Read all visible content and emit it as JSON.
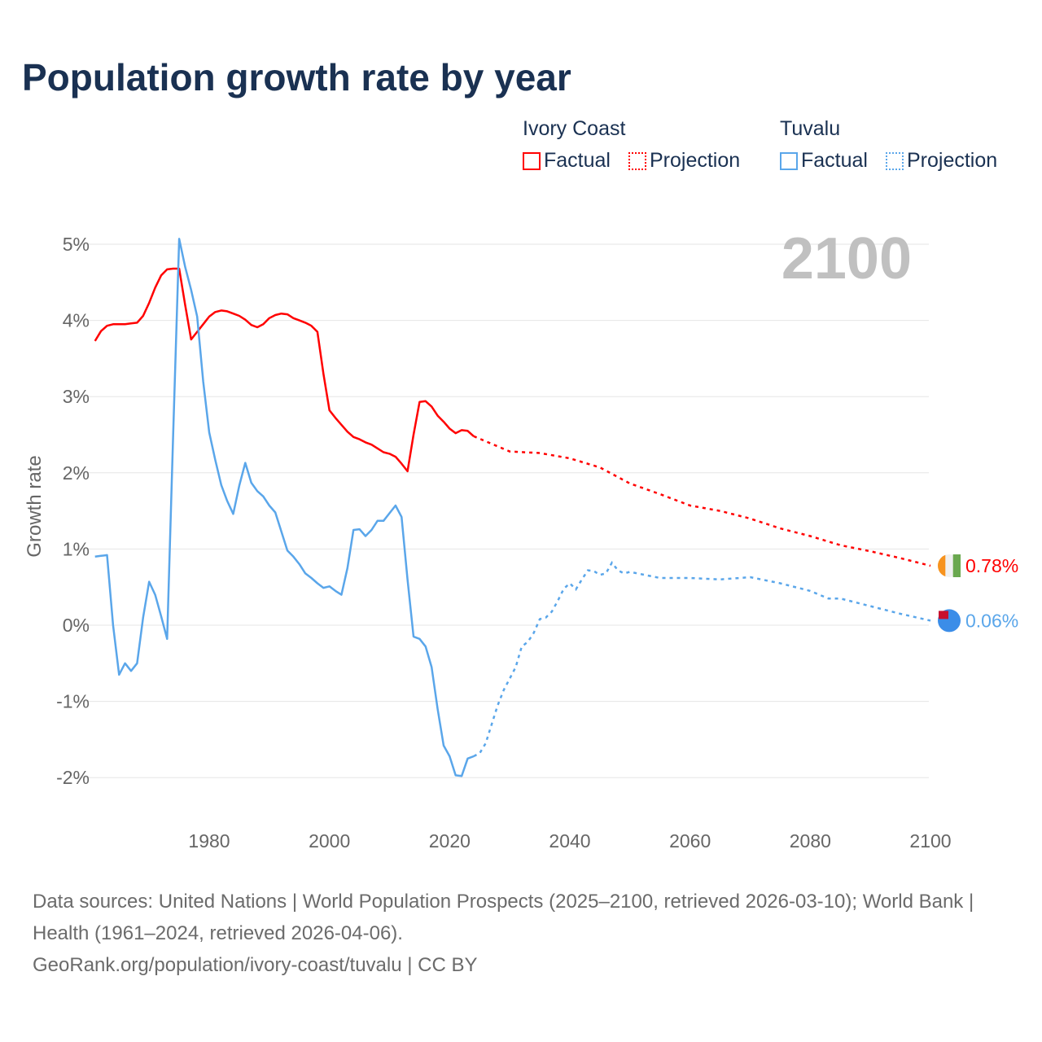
{
  "title": "Population growth rate by year",
  "legend": {
    "groups": [
      {
        "name": "Ivory Coast",
        "color": "#ff0000",
        "factual": "Factual",
        "projection": "Projection"
      },
      {
        "name": "Tuvalu",
        "color": "#5aa6ea",
        "factual": "Factual",
        "projection": "Projection"
      }
    ]
  },
  "footer": {
    "sources": "Data sources: United Nations | World Population Prospects (2025–2100, retrieved 2026-03-10); World Bank | Health (1961–2024, retrieved 2026-04-06).",
    "credit": "GeoRank.org/population/ivory-coast/tuvalu | CC BY"
  },
  "chart_data": {
    "type": "line",
    "title": "Population growth rate by year",
    "ylabel": "Growth rate",
    "xlabel": "",
    "year_label": "2100",
    "xlim": [
      1961,
      2100
    ],
    "ylim": [
      -2.4,
      5.2
    ],
    "x_ticks": [
      1980,
      2000,
      2020,
      2040,
      2060,
      2080,
      2100
    ],
    "y_ticks": [
      -2,
      -1,
      0,
      1,
      2,
      3,
      4,
      5
    ],
    "y_tick_labels": [
      "-2%",
      "-1%",
      "0%",
      "1%",
      "2%",
      "3%",
      "4%",
      "5%"
    ],
    "grid": true,
    "legend_position": "top-right",
    "series": [
      {
        "name": "Ivory Coast",
        "color": "#ff0000",
        "end_label": "0.78%",
        "factual": {
          "start": 1961,
          "values": [
            3.73,
            3.86,
            3.93,
            3.95,
            3.95,
            3.95,
            3.96,
            3.97,
            4.06,
            4.23,
            4.43,
            4.59,
            4.67,
            4.68,
            4.68,
            4.2,
            3.75,
            3.85,
            3.95,
            4.05,
            4.11,
            4.13,
            4.12,
            4.09,
            4.06,
            4.01,
            3.94,
            3.91,
            3.95,
            4.03,
            4.07,
            4.09,
            4.08,
            4.03,
            4.0,
            3.97,
            3.93,
            3.85,
            3.3,
            2.82,
            2.72,
            2.63,
            2.54,
            2.47,
            2.44,
            2.4,
            2.37,
            2.32,
            2.27,
            2.25,
            2.21,
            2.12,
            2.02,
            2.5,
            2.93,
            2.94,
            2.87,
            2.75,
            2.67,
            2.58,
            2.52,
            2.56,
            2.55,
            2.48
          ]
        },
        "projection": {
          "x": [
            2024,
            2030,
            2035,
            2040,
            2045,
            2050,
            2055,
            2060,
            2065,
            2070,
            2075,
            2080,
            2085,
            2090,
            2095,
            2100
          ],
          "values": [
            2.48,
            2.28,
            2.26,
            2.19,
            2.07,
            1.86,
            1.72,
            1.57,
            1.5,
            1.4,
            1.27,
            1.17,
            1.05,
            0.97,
            0.88,
            0.78
          ]
        }
      },
      {
        "name": "Tuvalu",
        "color": "#5aa6ea",
        "end_label": "0.06%",
        "factual": {
          "start": 1961,
          "values": [
            0.9,
            0.91,
            0.92,
            0.0,
            -0.65,
            -0.5,
            -0.6,
            -0.5,
            0.1,
            0.57,
            0.4,
            0.12,
            -0.18,
            2.5,
            5.07,
            4.7,
            4.4,
            4.05,
            3.2,
            2.53,
            2.17,
            1.84,
            1.63,
            1.46,
            1.83,
            2.13,
            1.87,
            1.76,
            1.69,
            1.57,
            1.48,
            1.23,
            0.98,
            0.9,
            0.8,
            0.68,
            0.62,
            0.55,
            0.49,
            0.51,
            0.45,
            0.4,
            0.75,
            1.25,
            1.26,
            1.17,
            1.25,
            1.37,
            1.37,
            1.47,
            1.57,
            1.42,
            0.6,
            -0.15,
            -0.18,
            -0.28,
            -0.55,
            -1.1,
            -1.58,
            -1.72,
            -1.97,
            -1.98,
            -1.75,
            -1.72
          ]
        },
        "projection": {
          "x": [
            2024,
            2025,
            2026,
            2027,
            2028,
            2029,
            2030,
            2031,
            2032,
            2033,
            2034,
            2035,
            2036,
            2037,
            2038,
            2039,
            2040,
            2041,
            2042,
            2043,
            2044,
            2045,
            2046,
            2047,
            2048,
            2049,
            2050,
            2055,
            2060,
            2065,
            2070,
            2075,
            2080,
            2083,
            2085,
            2090,
            2095,
            2100
          ],
          "values": [
            -1.72,
            -1.68,
            -1.55,
            -1.3,
            -1.05,
            -0.85,
            -0.7,
            -0.55,
            -0.28,
            -0.22,
            -0.1,
            0.08,
            0.1,
            0.18,
            0.32,
            0.48,
            0.55,
            0.47,
            0.6,
            0.72,
            0.71,
            0.66,
            0.68,
            0.82,
            0.72,
            0.68,
            0.7,
            0.62,
            0.62,
            0.6,
            0.63,
            0.55,
            0.45,
            0.35,
            0.35,
            0.25,
            0.15,
            0.06
          ]
        }
      }
    ]
  }
}
